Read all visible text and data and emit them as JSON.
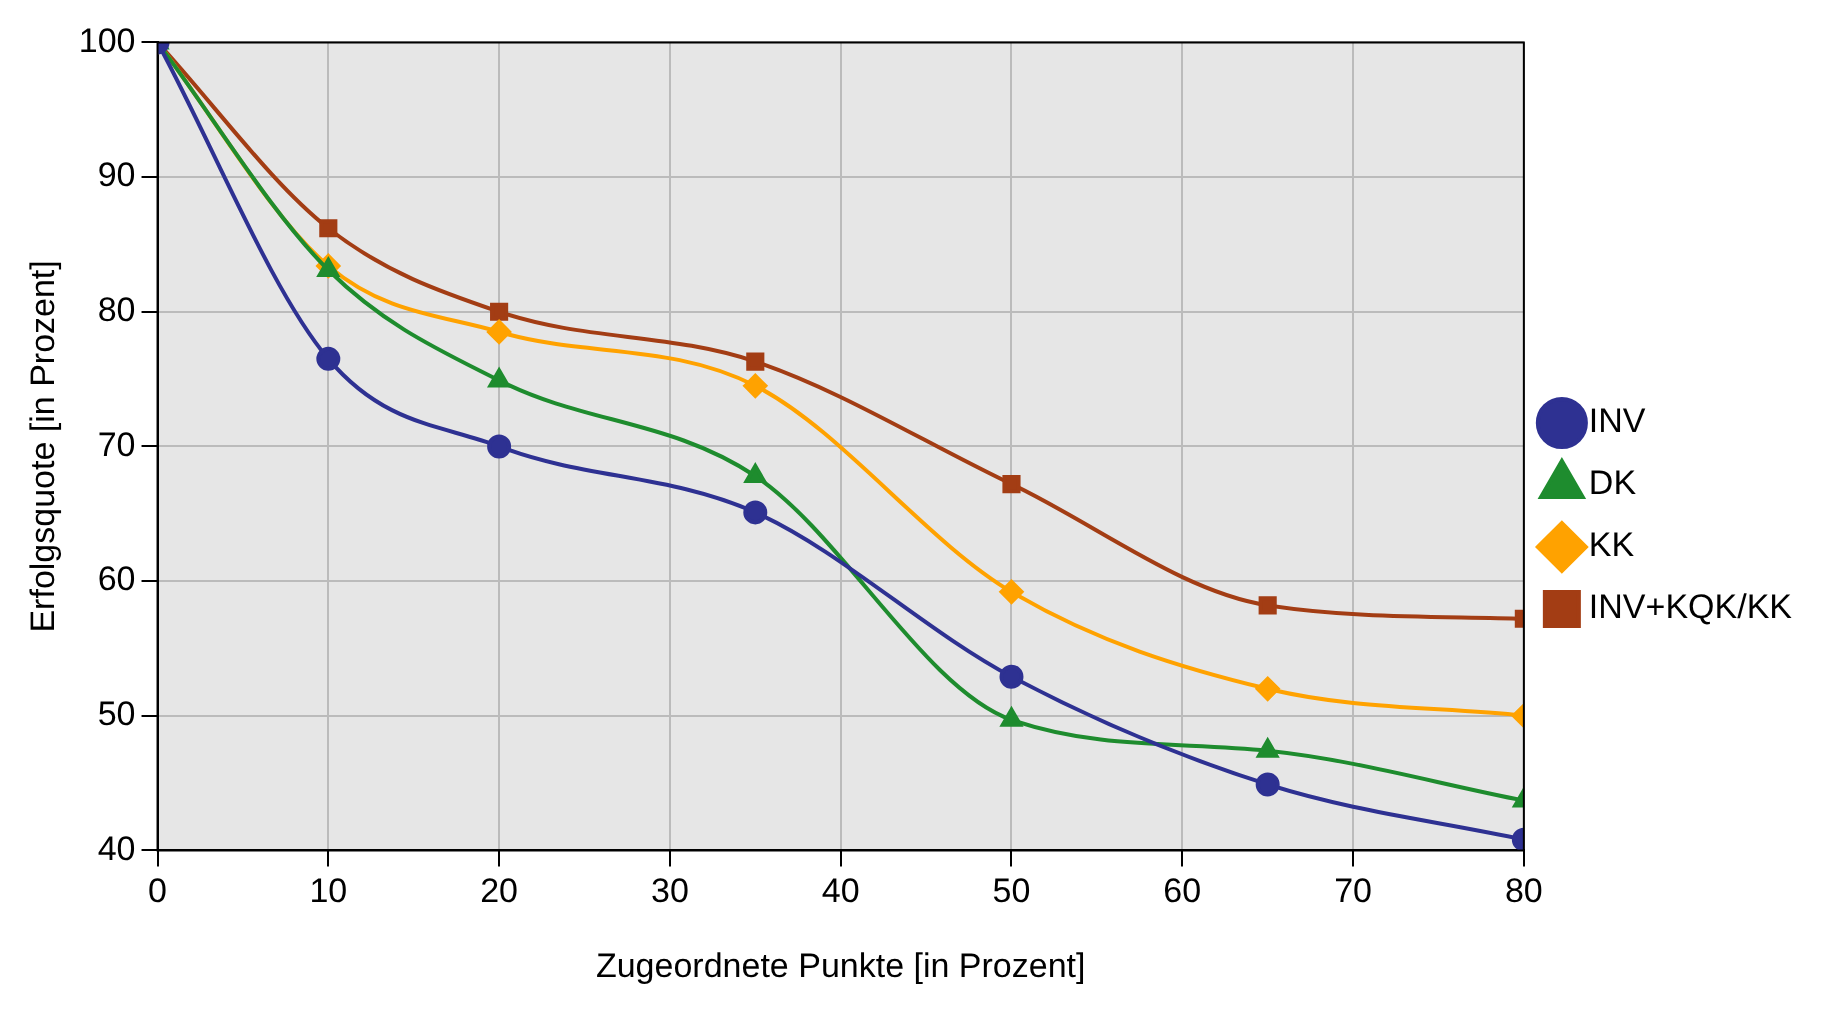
{
  "chart_data": {
    "type": "line",
    "xlabel": "Zugeordnete Punkte [in Prozent]",
    "ylabel": "Erfolgsquote [in Prozent]",
    "x": [
      0,
      10,
      20,
      35,
      50,
      65,
      80
    ],
    "series": [
      {
        "name": "INV",
        "color": "#2e3192",
        "marker": "circle",
        "values": [
          100,
          76.5,
          70,
          65.1,
          52.9,
          44.9,
          40.8
        ]
      },
      {
        "name": "DK",
        "color": "#1e8c2e",
        "marker": "triangle",
        "values": [
          100,
          83.1,
          74.9,
          67.8,
          49.7,
          47.4,
          43.7
        ]
      },
      {
        "name": "KK",
        "color": "#ffa200",
        "marker": "diamond",
        "values": [
          100,
          83.4,
          78.5,
          74.5,
          59.2,
          52,
          50
        ]
      },
      {
        "name": "INV+KQK/KK",
        "color": "#a33d14",
        "marker": "square",
        "values": [
          100,
          86.2,
          80,
          76.3,
          67.2,
          58.2,
          57.2
        ]
      }
    ],
    "xlim": [
      0,
      80
    ],
    "xticks": [
      0,
      10,
      20,
      30,
      40,
      50,
      60,
      70,
      80
    ],
    "ylim": [
      40,
      100
    ],
    "yticks": [
      40,
      50,
      60,
      70,
      80,
      90,
      100
    ],
    "grid": true,
    "legend": "right",
    "line_style": "solid"
  }
}
